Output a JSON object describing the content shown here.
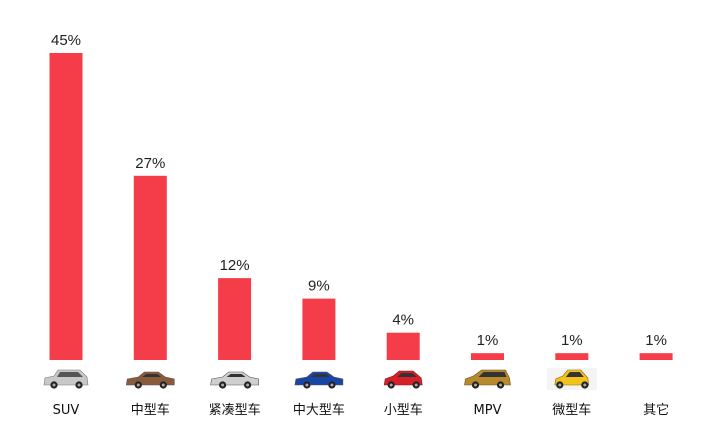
{
  "chart_data": {
    "type": "bar",
    "categories": [
      "SUV",
      "中型车",
      "紧凑型车",
      "中大型车",
      "小型车",
      "MPV",
      "微型车",
      "其它"
    ],
    "values": [
      45,
      27,
      12,
      9,
      4,
      1,
      1,
      1
    ],
    "value_labels": [
      "45%",
      "27%",
      "12%",
      "9%",
      "4%",
      "1%",
      "1%",
      "1%"
    ],
    "unit": "%",
    "ylim": [
      0,
      45
    ],
    "grid": false,
    "legend": "none",
    "bar_color": "#f53d4a",
    "car_icons": [
      {
        "name": "suv-silver-icon",
        "body": "#c8c8c8",
        "kind": "suv"
      },
      {
        "name": "sedan-bronze-icon",
        "body": "#8a5a3c",
        "kind": "sedan"
      },
      {
        "name": "hatch-silver-icon",
        "body": "#cfcfcf",
        "kind": "sedan"
      },
      {
        "name": "sedan-blue-icon",
        "body": "#1846a8",
        "kind": "sedan"
      },
      {
        "name": "hatch-red-icon",
        "body": "#d8202a",
        "kind": "hatch"
      },
      {
        "name": "mpv-gold-icon",
        "body": "#b88a2e",
        "kind": "mpv"
      },
      {
        "name": "micro-yellow-icon",
        "body": "#f2c21d",
        "kind": "micro"
      },
      {
        "name": "other-icon",
        "body": "#000000",
        "kind": "none"
      }
    ]
  }
}
